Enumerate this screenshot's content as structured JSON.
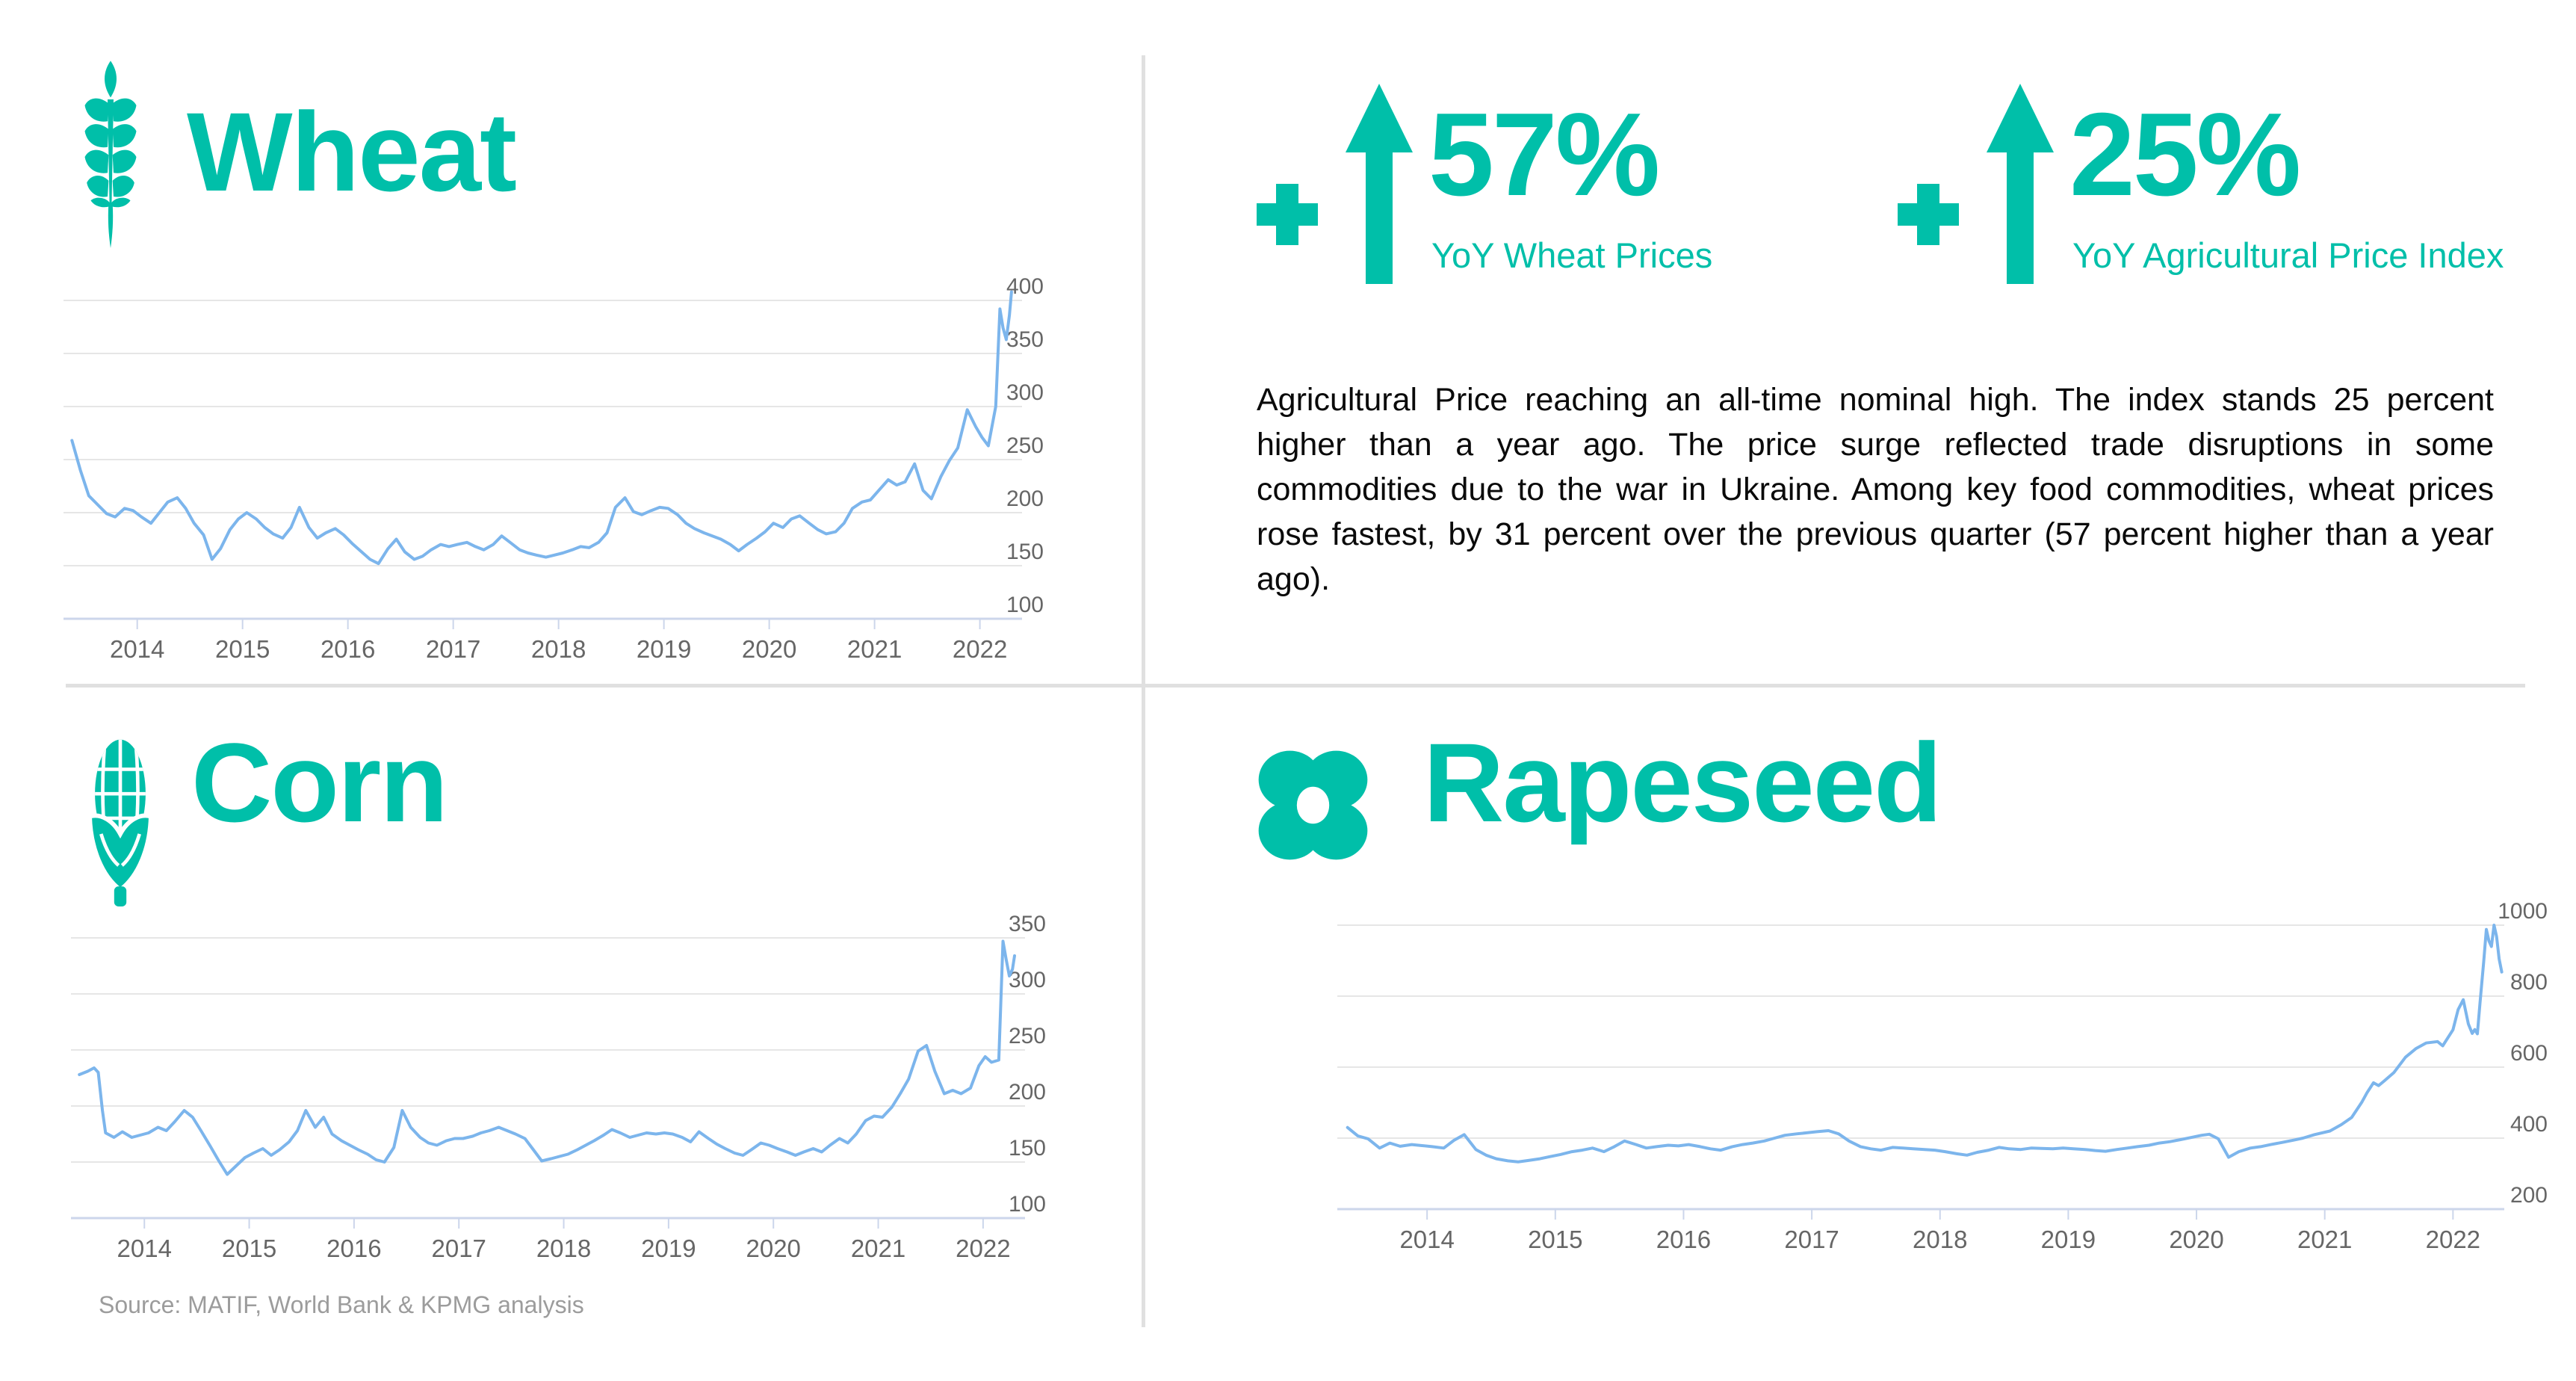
{
  "colors": {
    "accent": "#00BFA9",
    "line": "#7CB5EC",
    "grid": "#E6E6E6",
    "axis": "#CCD6EB",
    "axis_label": "#666666",
    "text": "#0A0A0A",
    "source": "#9C9C9C",
    "divider": "#E0E0E0"
  },
  "panels": {
    "wheat": {
      "title": "Wheat",
      "icon": "wheat-icon"
    },
    "corn": {
      "title": "Corn",
      "icon": "corn-icon"
    },
    "rapeseed": {
      "title": "Rapeseed",
      "icon": "rapeseed-icon"
    }
  },
  "stats": [
    {
      "value": "57%",
      "label": "YoY Wheat Prices",
      "icons": [
        "plus-icon",
        "up-arrow-icon"
      ]
    },
    {
      "value": "25%",
      "label": "YoY Agricultural Price Index",
      "icons": [
        "plus-icon",
        "up-arrow-icon"
      ]
    }
  ],
  "paragraph": "Agricultural Price reaching an all-time nominal high. The index stands 25 percent higher than a year ago. The price surge reflected trade disruptions in some commodities due to the war in Ukraine. Among key food commodities, wheat prices rose fastest, by 31 percent over the previous quarter (57 percent higher than a year ago).",
  "source": "Source: MATIF, World Bank & KPMG analysis",
  "chart_data": [
    {
      "id": "wheat",
      "type": "line",
      "title": "Wheat",
      "legend": "none",
      "grid": true,
      "y_axis_side": "right",
      "xlim": [
        2013.3,
        2022.4
      ],
      "ylim": [
        100,
        419
      ],
      "xticks": [
        2014,
        2015,
        2016,
        2017,
        2018,
        2019,
        2020,
        2021,
        2022
      ],
      "yticks": [
        400,
        350,
        300,
        250,
        200,
        150,
        100
      ],
      "x": [
        2013.38,
        2013.46,
        2013.54,
        2013.63,
        2013.71,
        2013.79,
        2013.88,
        2013.96,
        2014.04,
        2014.13,
        2014.21,
        2014.29,
        2014.38,
        2014.46,
        2014.54,
        2014.63,
        2014.71,
        2014.79,
        2014.88,
        2014.96,
        2015.04,
        2015.13,
        2015.21,
        2015.29,
        2015.38,
        2015.46,
        2015.54,
        2015.63,
        2015.71,
        2015.79,
        2015.88,
        2015.96,
        2016.04,
        2016.13,
        2016.21,
        2016.29,
        2016.38,
        2016.46,
        2016.54,
        2016.63,
        2016.71,
        2016.79,
        2016.88,
        2016.96,
        2017.04,
        2017.13,
        2017.21,
        2017.29,
        2017.38,
        2017.46,
        2017.54,
        2017.63,
        2017.71,
        2017.79,
        2017.88,
        2017.96,
        2018.04,
        2018.13,
        2018.21,
        2018.29,
        2018.38,
        2018.46,
        2018.54,
        2018.63,
        2018.71,
        2018.79,
        2018.88,
        2018.96,
        2019.04,
        2019.13,
        2019.21,
        2019.29,
        2019.38,
        2019.46,
        2019.54,
        2019.63,
        2019.71,
        2019.79,
        2019.88,
        2019.96,
        2020.04,
        2020.13,
        2020.21,
        2020.29,
        2020.38,
        2020.46,
        2020.54,
        2020.63,
        2020.71,
        2020.79,
        2020.88,
        2020.96,
        2021.04,
        2021.13,
        2021.21,
        2021.29,
        2021.38,
        2021.46,
        2021.54,
        2021.63,
        2021.71,
        2021.79,
        2021.88,
        2021.96,
        2022.02,
        2022.08,
        2022.15,
        2022.19,
        2022.22,
        2022.25,
        2022.28,
        2022.3
      ],
      "y": [
        268,
        240,
        216,
        207,
        199,
        196,
        204,
        202,
        196,
        190,
        200,
        210,
        214,
        204,
        190,
        179,
        156,
        166,
        184,
        194,
        200,
        194,
        186,
        180,
        176,
        186,
        205,
        186,
        176,
        181,
        185,
        179,
        171,
        163,
        156,
        152,
        166,
        175,
        163,
        156,
        159,
        165,
        170,
        168,
        170,
        172,
        168,
        165,
        170,
        178,
        172,
        165,
        162,
        160,
        158,
        160,
        162,
        165,
        168,
        167,
        172,
        181,
        205,
        214,
        201,
        198,
        202,
        205,
        204,
        198,
        190,
        185,
        181,
        178,
        175,
        170,
        164,
        170,
        176,
        182,
        190,
        186,
        194,
        197,
        190,
        184,
        180,
        182,
        190,
        204,
        210,
        212,
        221,
        231,
        226,
        229,
        246,
        221,
        213,
        234,
        249,
        261,
        297,
        281,
        271,
        263,
        300,
        392,
        374,
        363,
        386,
        408
      ]
    },
    {
      "id": "corn",
      "type": "line",
      "title": "Corn",
      "legend": "none",
      "grid": true,
      "y_axis_side": "right",
      "xlim": [
        2013.3,
        2022.4
      ],
      "ylim": [
        100,
        360
      ],
      "xticks": [
        2014,
        2015,
        2016,
        2017,
        2018,
        2019,
        2020,
        2021,
        2022
      ],
      "yticks": [
        350,
        300,
        250,
        200,
        150,
        100
      ],
      "x": [
        2013.38,
        2013.46,
        2013.52,
        2013.56,
        2013.6,
        2013.63,
        2013.71,
        2013.79,
        2013.88,
        2013.96,
        2014.04,
        2014.13,
        2014.21,
        2014.29,
        2014.38,
        2014.46,
        2014.54,
        2014.63,
        2014.71,
        2014.79,
        2014.88,
        2014.96,
        2015.04,
        2015.13,
        2015.21,
        2015.29,
        2015.38,
        2015.46,
        2015.54,
        2015.63,
        2015.71,
        2015.79,
        2015.88,
        2015.96,
        2016.04,
        2016.13,
        2016.21,
        2016.29,
        2016.38,
        2016.46,
        2016.54,
        2016.63,
        2016.71,
        2016.79,
        2016.88,
        2016.96,
        2017.04,
        2017.13,
        2017.21,
        2017.29,
        2017.38,
        2017.46,
        2017.54,
        2017.63,
        2017.71,
        2017.79,
        2017.88,
        2017.96,
        2018.04,
        2018.13,
        2018.21,
        2018.29,
        2018.38,
        2018.46,
        2018.54,
        2018.63,
        2018.71,
        2018.79,
        2018.88,
        2018.96,
        2019.04,
        2019.13,
        2019.21,
        2019.29,
        2019.38,
        2019.46,
        2019.54,
        2019.63,
        2019.71,
        2019.79,
        2019.88,
        2019.96,
        2020.04,
        2020.13,
        2020.21,
        2020.29,
        2020.38,
        2020.46,
        2020.54,
        2020.63,
        2020.71,
        2020.79,
        2020.88,
        2020.96,
        2021.04,
        2021.13,
        2021.21,
        2021.29,
        2021.38,
        2021.46,
        2021.54,
        2021.63,
        2021.71,
        2021.79,
        2021.88,
        2021.96,
        2022.02,
        2022.08,
        2022.15,
        2022.19,
        2022.22,
        2022.25,
        2022.28,
        2022.3
      ],
      "y": [
        228,
        231,
        234,
        230,
        196,
        176,
        172,
        177,
        172,
        174,
        176,
        181,
        178,
        186,
        196,
        190,
        178,
        164,
        151,
        139,
        147,
        154,
        158,
        162,
        156,
        161,
        168,
        178,
        196,
        181,
        190,
        175,
        169,
        165,
        161,
        157,
        152,
        150,
        163,
        196,
        181,
        172,
        167,
        165,
        169,
        171,
        171,
        173,
        176,
        178,
        181,
        178,
        175,
        171,
        161,
        151,
        153,
        155,
        157,
        161,
        165,
        169,
        174,
        179,
        176,
        172,
        174,
        176,
        175,
        176,
        175,
        172,
        168,
        177,
        171,
        166,
        162,
        158,
        156,
        161,
        167,
        165,
        162,
        159,
        156,
        159,
        162,
        159,
        165,
        171,
        167,
        175,
        187,
        191,
        190,
        199,
        211,
        224,
        249,
        254,
        231,
        211,
        214,
        211,
        216,
        236,
        244,
        239,
        241,
        347,
        331,
        316,
        322,
        334
      ]
    },
    {
      "id": "rapeseed",
      "type": "line",
      "title": "Rapeseed",
      "legend": "none",
      "grid": true,
      "y_axis_side": "right",
      "xlim": [
        2013.3,
        2022.4
      ],
      "ylim": [
        200,
        1010
      ],
      "xticks": [
        2014,
        2015,
        2016,
        2017,
        2018,
        2019,
        2020,
        2021,
        2022
      ],
      "yticks": [
        1000,
        800,
        600,
        400,
        200
      ],
      "x": [
        2013.38,
        2013.46,
        2013.54,
        2013.63,
        2013.71,
        2013.79,
        2013.88,
        2013.96,
        2014.04,
        2014.13,
        2014.21,
        2014.29,
        2014.38,
        2014.46,
        2014.54,
        2014.63,
        2014.71,
        2014.79,
        2014.88,
        2014.96,
        2015.04,
        2015.13,
        2015.21,
        2015.29,
        2015.38,
        2015.46,
        2015.54,
        2015.63,
        2015.71,
        2015.79,
        2015.88,
        2015.96,
        2016.04,
        2016.13,
        2016.21,
        2016.29,
        2016.38,
        2016.46,
        2016.54,
        2016.63,
        2016.71,
        2016.79,
        2016.88,
        2016.96,
        2017.04,
        2017.13,
        2017.21,
        2017.29,
        2017.38,
        2017.46,
        2017.54,
        2017.63,
        2017.71,
        2017.79,
        2017.88,
        2017.96,
        2018.04,
        2018.13,
        2018.21,
        2018.29,
        2018.38,
        2018.46,
        2018.54,
        2018.63,
        2018.71,
        2018.79,
        2018.88,
        2018.96,
        2019.04,
        2019.13,
        2019.21,
        2019.29,
        2019.38,
        2019.46,
        2019.54,
        2019.63,
        2019.71,
        2019.79,
        2019.88,
        2019.96,
        2020.04,
        2020.1,
        2020.17,
        2020.25,
        2020.33,
        2020.42,
        2020.5,
        2020.58,
        2020.67,
        2020.75,
        2020.83,
        2020.92,
        2021.04,
        2021.13,
        2021.21,
        2021.29,
        2021.33,
        2021.38,
        2021.42,
        2021.46,
        2021.54,
        2021.63,
        2021.71,
        2021.79,
        2021.88,
        2021.92,
        2022.0,
        2022.04,
        2022.08,
        2022.12,
        2022.15,
        2022.17,
        2022.19,
        2022.21,
        2022.24,
        2022.26,
        2022.28,
        2022.3,
        2022.32,
        2022.34,
        2022.36,
        2022.38
      ],
      "y": [
        430,
        406,
        398,
        372,
        386,
        377,
        382,
        379,
        376,
        372,
        394,
        410,
        368,
        352,
        342,
        336,
        333,
        337,
        342,
        348,
        354,
        362,
        366,
        372,
        362,
        376,
        392,
        382,
        372,
        376,
        380,
        378,
        382,
        376,
        370,
        366,
        376,
        382,
        386,
        392,
        400,
        408,
        412,
        415,
        418,
        421,
        412,
        392,
        376,
        370,
        366,
        374,
        372,
        370,
        368,
        366,
        362,
        356,
        352,
        360,
        366,
        374,
        370,
        368,
        372,
        371,
        370,
        372,
        370,
        368,
        365,
        363,
        368,
        372,
        376,
        380,
        386,
        390,
        396,
        402,
        408,
        411,
        398,
        346,
        362,
        372,
        376,
        382,
        388,
        394,
        400,
        410,
        420,
        438,
        458,
        502,
        528,
        556,
        548,
        560,
        585,
        628,
        652,
        668,
        672,
        660,
        705,
        762,
        790,
        722,
        695,
        706,
        694,
        778,
        898,
        988,
        956,
        940,
        1000,
        968,
        905,
        868
      ]
    }
  ]
}
